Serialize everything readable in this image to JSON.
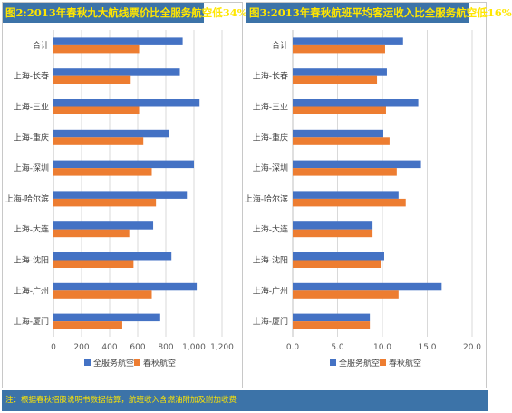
{
  "colors": {
    "blue": "#4472c4",
    "orange": "#ed7d31",
    "banner": "#3c73a8",
    "banner_text": "#ffe600"
  },
  "footnote": "注：根据春秋招股说明书数据估算，航班收入含燃油附加及附加收费",
  "chart_data": [
    {
      "type": "bar",
      "orientation": "horizontal",
      "title": "图2:2013年春秋九大航线票价比全服务航空低34%",
      "categories": [
        "合计",
        "上海-长春",
        "上海-三亚",
        "上海-重庆",
        "上海-深圳",
        "上海-哈尔滨",
        "上海-大连",
        "上海-沈阳",
        "上海-广州",
        "上海-厦门"
      ],
      "series": [
        {
          "name": "全服务航空",
          "color": "#4472c4",
          "values": [
            920,
            900,
            1040,
            820,
            1000,
            950,
            710,
            840,
            1020,
            760
          ]
        },
        {
          "name": "春秋航空",
          "color": "#ed7d31",
          "values": [
            610,
            550,
            610,
            640,
            700,
            730,
            540,
            570,
            700,
            490
          ]
        }
      ],
      "xlim": [
        0,
        1200
      ],
      "xticks": [
        "0",
        "200",
        "400",
        "600",
        "800",
        "1,000",
        "1,200"
      ],
      "grid": true,
      "legend": "bottom"
    },
    {
      "type": "bar",
      "orientation": "horizontal",
      "title": "图3:2013年春秋航班平均客运收入比全服务航空低16%",
      "categories": [
        "合计",
        "上海-长春",
        "上海-三亚",
        "上海-重庆",
        "上海-深圳",
        "上海-哈尔滨",
        "上海-大连",
        "上海-沈阳",
        "上海-广州",
        "上海-厦门"
      ],
      "series": [
        {
          "name": "全服务航空",
          "color": "#4472c4",
          "values": [
            12.3,
            10.5,
            14.0,
            10.1,
            14.3,
            11.8,
            8.9,
            10.2,
            16.6,
            8.6
          ]
        },
        {
          "name": "春秋航空",
          "color": "#ed7d31",
          "values": [
            10.3,
            9.4,
            10.4,
            10.8,
            11.6,
            12.6,
            8.9,
            9.8,
            11.8,
            8.6
          ]
        }
      ],
      "xlim": [
        0,
        20
      ],
      "xticks": [
        "0.0",
        "5.0",
        "10.0",
        "15.0",
        "20.0"
      ],
      "grid": true,
      "legend": "bottom"
    }
  ]
}
